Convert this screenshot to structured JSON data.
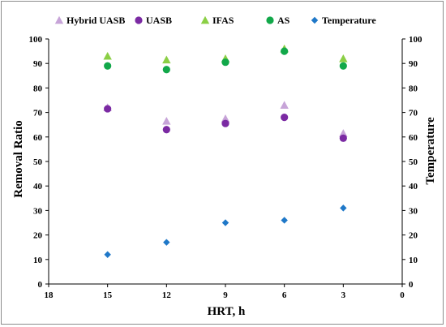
{
  "chart_data": {
    "type": "scatter",
    "title": "",
    "xlabel": "HRT, h",
    "ylabel": "Removal Ratio",
    "y2label": "Temperature",
    "xlim": [
      0,
      18
    ],
    "x_reversed": true,
    "ylim": [
      0,
      100
    ],
    "y2lim": [
      0,
      100
    ],
    "xticks": [
      "18",
      "15",
      "12",
      "9",
      "6",
      "3",
      "0"
    ],
    "xtick_values": [
      18,
      15,
      12,
      9,
      6,
      3,
      0
    ],
    "yticks": [
      "0",
      "10",
      "20",
      "30",
      "40",
      "50",
      "60",
      "70",
      "80",
      "90",
      "100"
    ],
    "ytick_values": [
      0,
      10,
      20,
      30,
      40,
      50,
      60,
      70,
      80,
      90,
      100
    ],
    "grid": false,
    "legend_position": "top",
    "series": [
      {
        "name": "Hybrid UASB",
        "marker": "triangle",
        "color": "#c7a4d8",
        "axis": "left",
        "x": [
          15,
          12,
          9,
          6,
          3
        ],
        "y": [
          72,
          66.5,
          67.5,
          73,
          61.5
        ]
      },
      {
        "name": "UASB",
        "marker": "circle",
        "color": "#7b2aa3",
        "axis": "left",
        "x": [
          15,
          12,
          9,
          6,
          3
        ],
        "y": [
          71.5,
          63,
          65.5,
          68,
          59.5
        ]
      },
      {
        "name": "IFAS",
        "marker": "triangle",
        "color": "#8bcf45",
        "axis": "left",
        "x": [
          15,
          12,
          9,
          6,
          3
        ],
        "y": [
          93,
          91.5,
          92,
          96,
          92
        ]
      },
      {
        "name": "AS",
        "marker": "circle",
        "color": "#12a84a",
        "axis": "left",
        "x": [
          15,
          12,
          9,
          6,
          3
        ],
        "y": [
          89,
          87.5,
          90.5,
          95,
          89
        ]
      },
      {
        "name": "Temperature",
        "marker": "diamond",
        "color": "#1f78c8",
        "axis": "right",
        "x": [
          15,
          12,
          9,
          6,
          3
        ],
        "y": [
          12,
          17,
          25,
          26,
          31
        ]
      }
    ]
  }
}
